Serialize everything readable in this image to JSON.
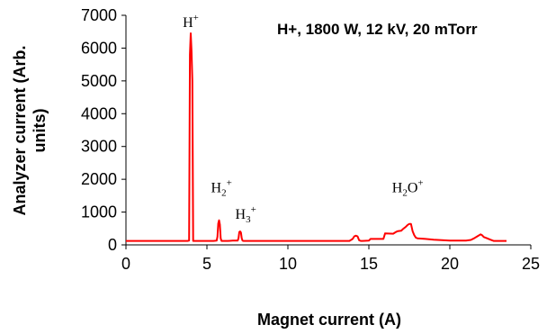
{
  "chart_data": {
    "type": "line",
    "title": "H+, 1800 W, 12 kV, 20 mTorr",
    "xlabel": "Magnet current (A)",
    "ylabel_lines": [
      "Analyzer current (Arb.",
      "units)"
    ],
    "xlim": [
      0,
      25
    ],
    "ylim": [
      0,
      7000
    ],
    "x_ticks": [
      "0",
      "5",
      "10",
      "15",
      "20",
      "25"
    ],
    "y_ticks": [
      "0",
      "1000",
      "2000",
      "3000",
      "4000",
      "5000",
      "6000",
      "7000"
    ],
    "grid": false,
    "legend": "none",
    "line_color": "#ff0000",
    "series": [
      {
        "x": [
          0.0,
          1.0,
          2.0,
          3.0,
          3.8,
          3.9,
          3.95,
          4.0,
          4.05,
          4.1,
          4.15,
          4.2,
          4.25,
          4.3,
          4.4,
          4.6,
          5.0,
          5.4,
          5.6,
          5.65,
          5.7,
          5.75,
          5.8,
          5.85,
          5.9,
          5.95,
          6.0,
          6.3,
          6.6,
          6.9,
          6.95,
          7.0,
          7.05,
          7.1,
          7.15,
          7.2,
          7.25,
          7.4,
          8.0,
          9.0,
          10.0,
          11.0,
          12.0,
          13.0,
          13.8,
          14.0,
          14.1,
          14.2,
          14.3,
          14.4,
          14.5,
          14.6,
          15.0,
          15.1,
          15.5,
          15.9,
          16.0,
          16.5,
          16.7,
          16.8,
          17.0,
          17.1,
          17.2,
          17.3,
          17.4,
          17.5,
          17.6,
          17.7,
          17.8,
          17.9,
          18.0,
          18.5,
          19.0,
          20.0,
          21.0,
          21.3,
          21.5,
          21.7,
          21.9,
          22.0,
          22.1,
          22.3,
          22.5,
          22.7,
          23.0,
          23.5
        ],
        "y": [
          120,
          120,
          120,
          120,
          120,
          130,
          5800,
          6450,
          5900,
          5000,
          120,
          120,
          120,
          120,
          120,
          120,
          120,
          120,
          130,
          250,
          650,
          750,
          620,
          200,
          120,
          120,
          120,
          120,
          130,
          130,
          200,
          390,
          410,
          380,
          200,
          130,
          120,
          120,
          120,
          120,
          120,
          120,
          120,
          120,
          120,
          180,
          260,
          280,
          260,
          140,
          120,
          120,
          130,
          180,
          180,
          180,
          350,
          340,
          400,
          420,
          430,
          480,
          520,
          560,
          610,
          640,
          640,
          420,
          300,
          220,
          200,
          180,
          160,
          130,
          130,
          150,
          200,
          260,
          320,
          290,
          240,
          200,
          160,
          120,
          120,
          120
        ]
      }
    ],
    "annotations": [
      {
        "base": "H",
        "sub": "",
        "sup": "+",
        "x": 4.0,
        "y": 6650
      },
      {
        "base": "H",
        "sub": "2",
        "sup": "+",
        "x": 5.9,
        "y": 1600
      },
      {
        "base": "H",
        "sub": "3",
        "sup": "+",
        "x": 7.4,
        "y": 800
      },
      {
        "base": "H",
        "sub": "2",
        "sup": "+",
        "post": "O",
        "x": 17.4,
        "y": 1600
      }
    ]
  }
}
